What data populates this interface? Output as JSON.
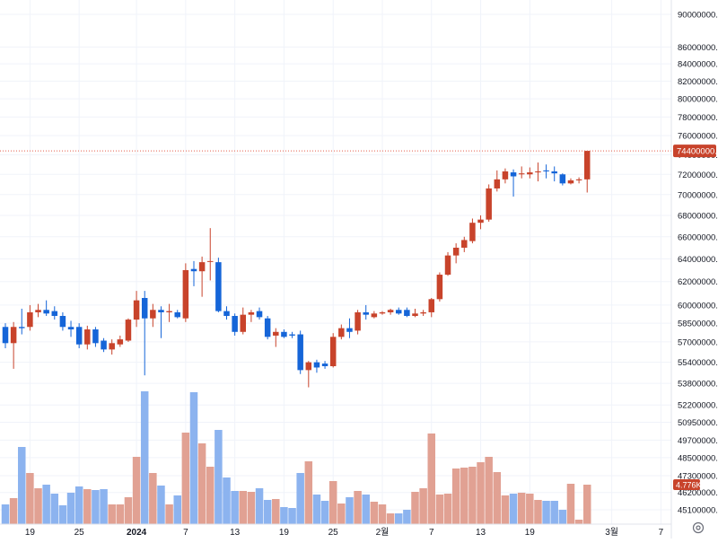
{
  "colors": {
    "up": "#c8432b",
    "down": "#1565d8",
    "volume_up": "#e1a193",
    "volume_down": "#8cb3ef",
    "grid": "#f0f3fa",
    "axis_text": "#131722",
    "price_line": "#e35d4b",
    "background": "#ffffff"
  },
  "chart_data": {
    "type": "candlestick",
    "x_tick_labels": [
      "19",
      "25",
      "2024",
      "7",
      "13",
      "19",
      "25",
      "2월",
      "7",
      "13",
      "19",
      "3월",
      "7"
    ],
    "y_tick_labels": [
      "90000000.0",
      "86000000.0",
      "84000000.0",
      "82000000.0",
      "80000000.0",
      "78000000.0",
      "76000000.0",
      "74000000.0",
      "72000000.0",
      "70000000.0",
      "68000000.0",
      "66000000.0",
      "64000000.0",
      "62000000.0",
      "60000000.0",
      "58500000.0",
      "57000000.0",
      "55400000.0",
      "53800000.0",
      "52200000.0",
      "50950000.0",
      "49700000.0",
      "48500000.0",
      "47300000.0",
      "46200000.0",
      "45100000.0"
    ],
    "y_scale": "log",
    "last_price_label": "74400000.0",
    "last_volume_label": "4.776K",
    "candles": [
      {
        "o": 58.2,
        "h": 58.5,
        "l": 56.5,
        "c": 56.9
      },
      {
        "o": 56.9,
        "h": 58.6,
        "l": 54.9,
        "c": 58.2
      },
      {
        "o": 58.2,
        "h": 59.7,
        "l": 57.6,
        "c": 58.1
      },
      {
        "o": 58.2,
        "h": 60.0,
        "l": 57.9,
        "c": 59.4
      },
      {
        "o": 59.4,
        "h": 60.1,
        "l": 59.0,
        "c": 59.6
      },
      {
        "o": 59.6,
        "h": 60.4,
        "l": 59.1,
        "c": 59.3
      },
      {
        "o": 59.5,
        "h": 59.9,
        "l": 58.8,
        "c": 59.1
      },
      {
        "o": 59.1,
        "h": 59.4,
        "l": 57.9,
        "c": 58.2
      },
      {
        "o": 58.2,
        "h": 58.7,
        "l": 57.4,
        "c": 58.0
      },
      {
        "o": 58.2,
        "h": 58.5,
        "l": 56.5,
        "c": 56.8
      },
      {
        "o": 56.8,
        "h": 58.3,
        "l": 56.4,
        "c": 58.0
      },
      {
        "o": 58.0,
        "h": 58.2,
        "l": 56.6,
        "c": 56.9
      },
      {
        "o": 57.1,
        "h": 57.3,
        "l": 56.2,
        "c": 56.4
      },
      {
        "o": 56.4,
        "h": 57.2,
        "l": 56.0,
        "c": 56.9
      },
      {
        "o": 56.8,
        "h": 57.5,
        "l": 56.6,
        "c": 57.2
      },
      {
        "o": 57.1,
        "h": 58.9,
        "l": 57.0,
        "c": 58.8
      },
      {
        "o": 58.8,
        "h": 61.2,
        "l": 58.2,
        "c": 60.4
      },
      {
        "o": 60.6,
        "h": 61.2,
        "l": 54.4,
        "c": 58.9
      },
      {
        "o": 58.9,
        "h": 60.1,
        "l": 58.2,
        "c": 59.6
      },
      {
        "o": 59.6,
        "h": 59.9,
        "l": 57.3,
        "c": 59.4
      },
      {
        "o": 59.4,
        "h": 60.1,
        "l": 58.6,
        "c": 59.5
      },
      {
        "o": 59.4,
        "h": 59.6,
        "l": 58.9,
        "c": 59.0
      },
      {
        "o": 58.9,
        "h": 63.6,
        "l": 58.6,
        "c": 63.0
      },
      {
        "o": 63.1,
        "h": 63.8,
        "l": 61.6,
        "c": 62.9
      },
      {
        "o": 62.9,
        "h": 64.2,
        "l": 60.7,
        "c": 63.7
      },
      {
        "o": 63.8,
        "h": 66.8,
        "l": 62.1,
        "c": 63.8
      },
      {
        "o": 63.7,
        "h": 64.1,
        "l": 59.4,
        "c": 59.5
      },
      {
        "o": 59.5,
        "h": 59.9,
        "l": 58.8,
        "c": 59.1
      },
      {
        "o": 59.1,
        "h": 59.3,
        "l": 57.5,
        "c": 57.8
      },
      {
        "o": 57.8,
        "h": 59.8,
        "l": 57.6,
        "c": 59.2
      },
      {
        "o": 59.2,
        "h": 59.6,
        "l": 58.6,
        "c": 59.4
      },
      {
        "o": 59.5,
        "h": 59.8,
        "l": 58.8,
        "c": 59.0
      },
      {
        "o": 58.9,
        "h": 59.1,
        "l": 57.2,
        "c": 57.4
      },
      {
        "o": 57.5,
        "h": 58.1,
        "l": 56.6,
        "c": 57.8
      },
      {
        "o": 57.8,
        "h": 58.0,
        "l": 57.3,
        "c": 57.4
      },
      {
        "o": 57.6,
        "h": 57.8,
        "l": 57.3,
        "c": 57.5
      },
      {
        "o": 57.6,
        "h": 57.9,
        "l": 54.5,
        "c": 54.8
      },
      {
        "o": 54.8,
        "h": 55.5,
        "l": 53.5,
        "c": 55.4
      },
      {
        "o": 55.4,
        "h": 55.6,
        "l": 54.6,
        "c": 55.0
      },
      {
        "o": 55.3,
        "h": 55.5,
        "l": 54.9,
        "c": 55.1
      },
      {
        "o": 55.1,
        "h": 57.7,
        "l": 55.0,
        "c": 57.4
      },
      {
        "o": 57.4,
        "h": 58.4,
        "l": 57.2,
        "c": 58.1
      },
      {
        "o": 58.1,
        "h": 58.9,
        "l": 57.3,
        "c": 57.8
      },
      {
        "o": 57.9,
        "h": 59.6,
        "l": 57.6,
        "c": 59.4
      },
      {
        "o": 59.4,
        "h": 60.0,
        "l": 58.8,
        "c": 59.2
      },
      {
        "o": 59.0,
        "h": 59.5,
        "l": 58.9,
        "c": 59.3
      },
      {
        "o": 59.3,
        "h": 59.5,
        "l": 59.2,
        "c": 59.4
      },
      {
        "o": 59.4,
        "h": 59.7,
        "l": 59.2,
        "c": 59.6
      },
      {
        "o": 59.6,
        "h": 59.8,
        "l": 59.2,
        "c": 59.3
      },
      {
        "o": 59.6,
        "h": 59.8,
        "l": 59.0,
        "c": 59.1
      },
      {
        "o": 59.1,
        "h": 59.7,
        "l": 59.0,
        "c": 59.3
      },
      {
        "o": 59.3,
        "h": 59.6,
        "l": 59.1,
        "c": 59.4
      },
      {
        "o": 59.4,
        "h": 60.6,
        "l": 59.0,
        "c": 60.5
      },
      {
        "o": 60.5,
        "h": 62.8,
        "l": 60.3,
        "c": 62.6
      },
      {
        "o": 62.6,
        "h": 64.6,
        "l": 62.5,
        "c": 64.3
      },
      {
        "o": 64.3,
        "h": 65.4,
        "l": 63.6,
        "c": 65.0
      },
      {
        "o": 65.0,
        "h": 66.0,
        "l": 64.6,
        "c": 65.7
      },
      {
        "o": 65.6,
        "h": 67.7,
        "l": 65.4,
        "c": 67.3
      },
      {
        "o": 67.3,
        "h": 68.0,
        "l": 66.7,
        "c": 67.6
      },
      {
        "o": 67.6,
        "h": 71.0,
        "l": 67.4,
        "c": 70.6
      },
      {
        "o": 70.6,
        "h": 72.4,
        "l": 70.3,
        "c": 71.5
      },
      {
        "o": 71.5,
        "h": 72.6,
        "l": 71.1,
        "c": 72.3
      },
      {
        "o": 72.2,
        "h": 72.5,
        "l": 69.8,
        "c": 71.8
      },
      {
        "o": 72.0,
        "h": 72.8,
        "l": 71.6,
        "c": 72.1
      },
      {
        "o": 72.0,
        "h": 72.7,
        "l": 71.6,
        "c": 72.2
      },
      {
        "o": 72.2,
        "h": 73.2,
        "l": 71.3,
        "c": 72.3
      },
      {
        "o": 72.4,
        "h": 73.0,
        "l": 71.6,
        "c": 72.3
      },
      {
        "o": 72.3,
        "h": 72.8,
        "l": 71.3,
        "c": 72.1
      },
      {
        "o": 72.0,
        "h": 72.1,
        "l": 70.9,
        "c": 71.1
      },
      {
        "o": 71.1,
        "h": 71.6,
        "l": 71.0,
        "c": 71.4
      },
      {
        "o": 71.4,
        "h": 71.7,
        "l": 71.1,
        "c": 71.5
      },
      {
        "o": 71.5,
        "h": 74.4,
        "l": 70.2,
        "c": 74.4
      }
    ],
    "volumes": [
      22,
      29,
      86,
      57,
      40,
      44,
      34,
      21,
      35,
      42,
      39,
      38,
      39,
      22,
      22,
      30,
      75,
      148,
      57,
      43,
      22,
      32,
      102,
      147,
      90,
      64,
      105,
      52,
      37,
      37,
      36,
      40,
      27,
      28,
      19,
      18,
      57,
      70,
      33,
      26,
      48,
      23,
      30,
      37,
      33,
      25,
      22,
      12,
      12,
      16,
      36,
      40,
      101,
      33,
      34,
      62,
      63,
      64,
      69,
      75,
      58,
      32,
      34,
      35,
      34,
      27,
      26,
      26,
      16,
      45,
      5,
      44
    ],
    "volume_scale": {
      "max": 150
    }
  }
}
